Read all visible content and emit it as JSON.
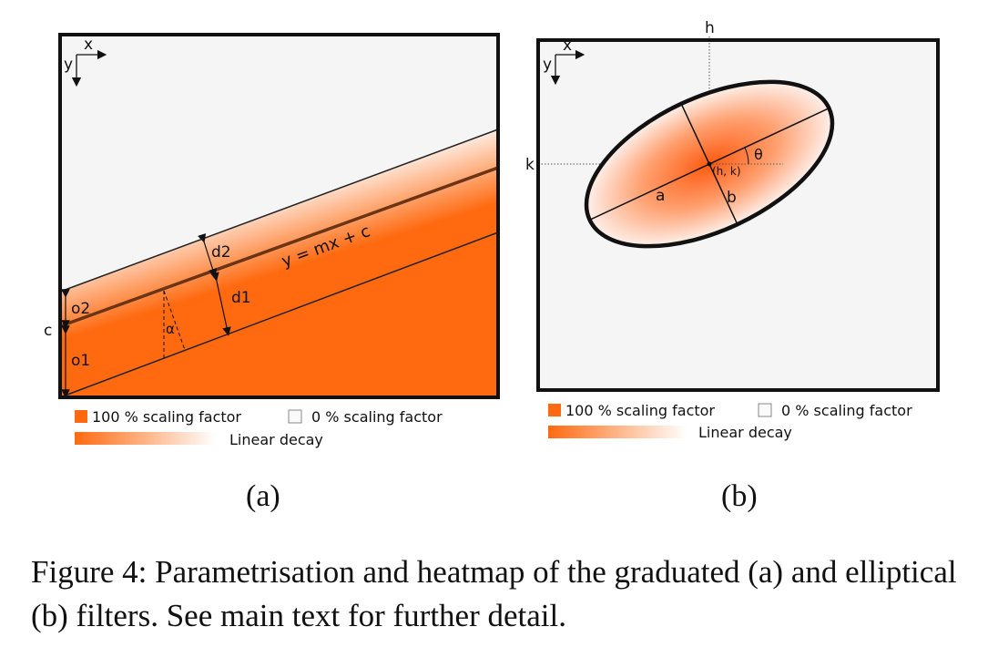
{
  "panel_a": {
    "axis_x": "x",
    "axis_y": "y",
    "intercept_label": "c",
    "line_equation": "y = mx + c",
    "label_d1": "d1",
    "label_d2": "d2",
    "label_o1": "o1",
    "label_o2": "o2",
    "label_alpha": "α",
    "legend_full": "100 % scaling factor",
    "legend_zero": "0 % scaling factor",
    "legend_decay": "Linear decay",
    "sublabel": "(a)"
  },
  "panel_b": {
    "axis_x": "x",
    "axis_y": "y",
    "label_h": "h",
    "label_k": "k",
    "label_center": "(h, k)",
    "label_a": "a",
    "label_b": "b",
    "label_theta": "θ",
    "legend_full": "100 % scaling factor",
    "legend_zero": "0 % scaling factor",
    "legend_decay": "Linear decay",
    "sublabel": "(b)"
  },
  "colors": {
    "filter_orange": "#ff6a10",
    "line_brown": "#6b3414",
    "background_grey": "#f5f5f5"
  },
  "caption": "Figure 4: Parametrisation and heatmap of the graduated (a) and elliptical (b) filters. See main text for further detail."
}
